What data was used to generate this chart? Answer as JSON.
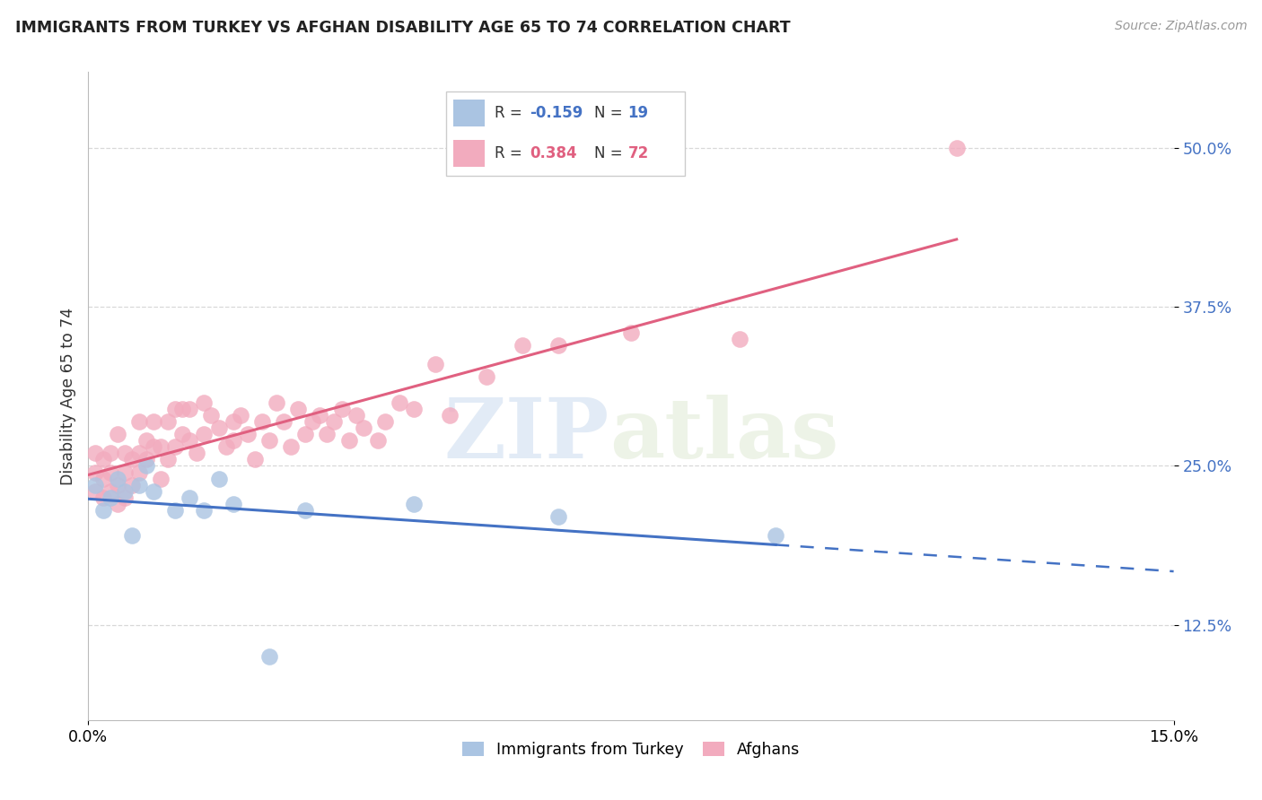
{
  "title": "IMMIGRANTS FROM TURKEY VS AFGHAN DISABILITY AGE 65 TO 74 CORRELATION CHART",
  "source": "Source: ZipAtlas.com",
  "ylabel": "Disability Age 65 to 74",
  "ytick_values": [
    0.125,
    0.25,
    0.375,
    0.5
  ],
  "xlim": [
    0.0,
    0.15
  ],
  "ylim": [
    0.05,
    0.56
  ],
  "watermark_zip": "ZIP",
  "watermark_atlas": "atlas",
  "turkey_R": -0.159,
  "turkey_N": 19,
  "afghan_R": 0.384,
  "afghan_N": 72,
  "turkey_color": "#aac4e2",
  "afghan_color": "#f2abbe",
  "turkey_line_color": "#4472c4",
  "afghan_line_color": "#e06080",
  "turkey_x": [
    0.001,
    0.002,
    0.003,
    0.004,
    0.005,
    0.006,
    0.007,
    0.008,
    0.009,
    0.012,
    0.014,
    0.016,
    0.018,
    0.02,
    0.025,
    0.03,
    0.045,
    0.065,
    0.095
  ],
  "turkey_y": [
    0.235,
    0.215,
    0.225,
    0.24,
    0.23,
    0.195,
    0.235,
    0.25,
    0.23,
    0.215,
    0.225,
    0.215,
    0.24,
    0.22,
    0.1,
    0.215,
    0.22,
    0.21,
    0.195
  ],
  "afghan_x": [
    0.001,
    0.001,
    0.001,
    0.002,
    0.002,
    0.002,
    0.003,
    0.003,
    0.003,
    0.004,
    0.004,
    0.004,
    0.005,
    0.005,
    0.005,
    0.006,
    0.006,
    0.007,
    0.007,
    0.007,
    0.008,
    0.008,
    0.009,
    0.009,
    0.01,
    0.01,
    0.011,
    0.011,
    0.012,
    0.012,
    0.013,
    0.013,
    0.014,
    0.014,
    0.015,
    0.016,
    0.016,
    0.017,
    0.018,
    0.019,
    0.02,
    0.02,
    0.021,
    0.022,
    0.023,
    0.024,
    0.025,
    0.026,
    0.027,
    0.028,
    0.029,
    0.03,
    0.031,
    0.032,
    0.033,
    0.034,
    0.035,
    0.036,
    0.037,
    0.038,
    0.04,
    0.041,
    0.043,
    0.045,
    0.048,
    0.05,
    0.055,
    0.06,
    0.065,
    0.075,
    0.09,
    0.12
  ],
  "afghan_y": [
    0.23,
    0.245,
    0.26,
    0.225,
    0.24,
    0.255,
    0.23,
    0.245,
    0.26,
    0.22,
    0.235,
    0.275,
    0.225,
    0.245,
    0.26,
    0.235,
    0.255,
    0.245,
    0.26,
    0.285,
    0.255,
    0.27,
    0.265,
    0.285,
    0.24,
    0.265,
    0.255,
    0.285,
    0.265,
    0.295,
    0.275,
    0.295,
    0.27,
    0.295,
    0.26,
    0.275,
    0.3,
    0.29,
    0.28,
    0.265,
    0.285,
    0.27,
    0.29,
    0.275,
    0.255,
    0.285,
    0.27,
    0.3,
    0.285,
    0.265,
    0.295,
    0.275,
    0.285,
    0.29,
    0.275,
    0.285,
    0.295,
    0.27,
    0.29,
    0.28,
    0.27,
    0.285,
    0.3,
    0.295,
    0.33,
    0.29,
    0.32,
    0.345,
    0.345,
    0.355,
    0.35,
    0.5
  ],
  "legend_turkey_label": "Immigrants from Turkey",
  "legend_afghan_label": "Afghans",
  "background_color": "#ffffff",
  "grid_color": "#d8d8d8"
}
